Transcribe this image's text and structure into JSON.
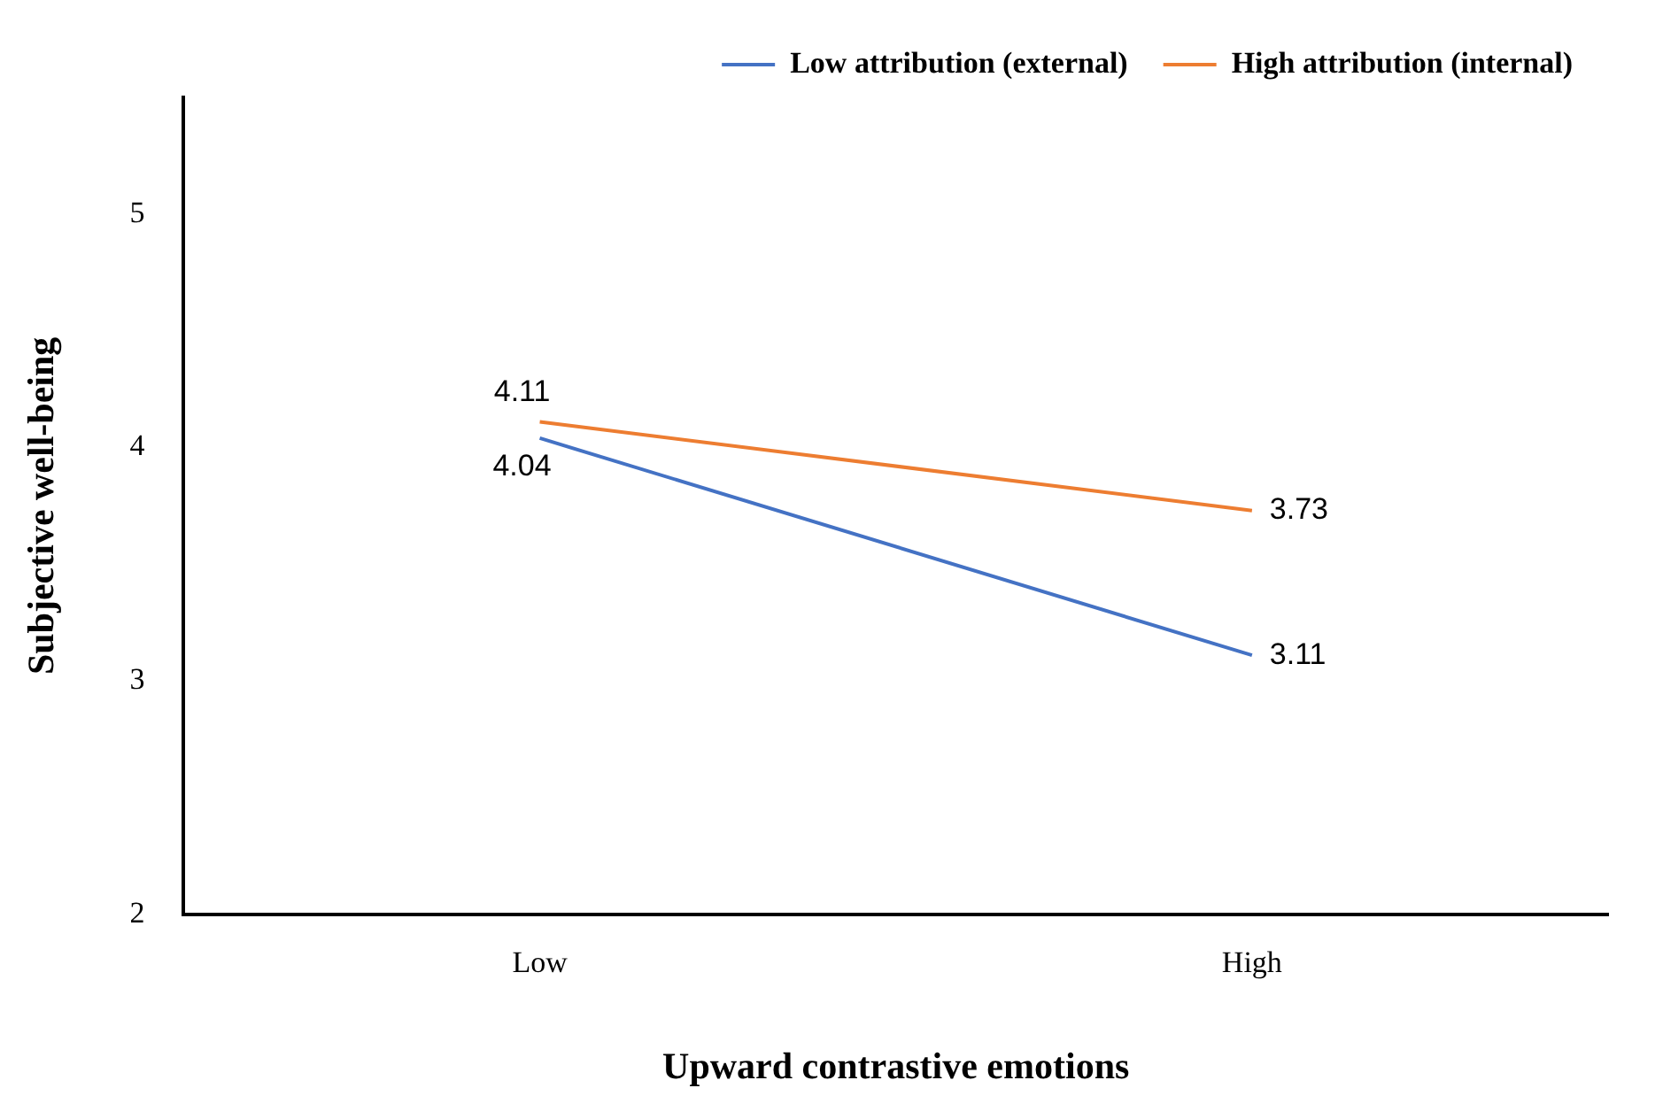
{
  "chart_data": {
    "type": "line",
    "xlabel": "Upward contrastive emotions",
    "ylabel": "Subjective well-being",
    "categories": [
      "Low",
      "High"
    ],
    "series": [
      {
        "name": "Low attribution (external)",
        "color": "#4472c4",
        "values": [
          4.04,
          3.11
        ]
      },
      {
        "name": "High attribution (internal)",
        "color": "#ed7d31",
        "values": [
          4.11,
          3.73
        ]
      }
    ],
    "ylim": [
      2,
      5.5
    ],
    "yticks": [
      2,
      3,
      4,
      5
    ],
    "grid": false,
    "legend": "top",
    "marker": "none",
    "line_style": "solid",
    "data_labels": true
  }
}
